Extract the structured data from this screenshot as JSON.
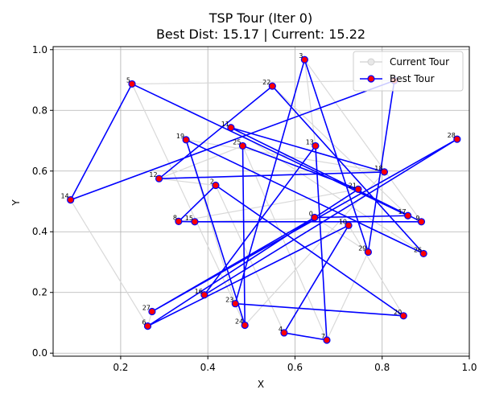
{
  "chart_data": {
    "type": "line",
    "title": "TSP Tour (Iter 0)",
    "subtitle": "Best Dist: 15.17 | Current: 15.22",
    "xlabel": "X",
    "ylabel": "Y",
    "xlim": [
      0.045,
      1.0
    ],
    "ylim": [
      -0.01,
      1.01
    ],
    "xticks": [
      0.2,
      0.4,
      0.6,
      0.8,
      1.0
    ],
    "xtick_labels": [
      "0.2",
      "0.4",
      "0.6",
      "0.8",
      "1.0"
    ],
    "yticks": [
      0.0,
      0.2,
      0.4,
      0.6,
      0.8,
      1.0
    ],
    "ytick_labels": [
      "0.0",
      "0.2",
      "0.4",
      "0.6",
      "0.8",
      "1.0"
    ],
    "grid": true,
    "legend": {
      "placement": "top-right",
      "entries": [
        {
          "label": "Current Tour",
          "color": "#d9d9d9"
        },
        {
          "label": "Best Tour",
          "color": "#0000ff"
        }
      ]
    },
    "points": [
      {
        "id": 0,
        "x": 0.645,
        "y": 0.447
      },
      {
        "id": 1,
        "x": 0.828,
        "y": 0.898
      },
      {
        "id": 2,
        "x": 0.418,
        "y": 0.553
      },
      {
        "id": 3,
        "x": 0.622,
        "y": 0.967
      },
      {
        "id": 4,
        "x": 0.575,
        "y": 0.067
      },
      {
        "id": 5,
        "x": 0.226,
        "y": 0.887
      },
      {
        "id": 6,
        "x": 0.262,
        "y": 0.089
      },
      {
        "id": 7,
        "x": 0.673,
        "y": 0.043
      },
      {
        "id": 8,
        "x": 0.333,
        "y": 0.434
      },
      {
        "id": 9,
        "x": 0.89,
        "y": 0.433
      },
      {
        "id": 10,
        "x": 0.723,
        "y": 0.421
      },
      {
        "id": 11,
        "x": 0.453,
        "y": 0.743
      },
      {
        "id": 12,
        "x": 0.288,
        "y": 0.575
      },
      {
        "id": 13,
        "x": 0.647,
        "y": 0.683
      },
      {
        "id": 14,
        "x": 0.085,
        "y": 0.505
      },
      {
        "id": 15,
        "x": 0.37,
        "y": 0.433
      },
      {
        "id": 16,
        "x": 0.392,
        "y": 0.192
      },
      {
        "id": 17,
        "x": 0.859,
        "y": 0.453
      },
      {
        "id": 18,
        "x": 0.805,
        "y": 0.597
      },
      {
        "id": 19,
        "x": 0.35,
        "y": 0.703
      },
      {
        "id": 20,
        "x": 0.849,
        "y": 0.123
      },
      {
        "id": 21,
        "x": 0.745,
        "y": 0.54
      },
      {
        "id": 22,
        "x": 0.548,
        "y": 0.88
      },
      {
        "id": 23,
        "x": 0.463,
        "y": 0.163
      },
      {
        "id": 24,
        "x": 0.485,
        "y": 0.092
      },
      {
        "id": 25,
        "x": 0.48,
        "y": 0.683
      },
      {
        "id": 26,
        "x": 0.895,
        "y": 0.328
      },
      {
        "id": 27,
        "x": 0.272,
        "y": 0.137
      },
      {
        "id": 28,
        "x": 0.972,
        "y": 0.705
      },
      {
        "id": 29,
        "x": 0.768,
        "y": 0.333
      }
    ],
    "series": [
      {
        "name": "Current Tour",
        "color": "#d9d9d9",
        "tour": [
          1,
          14,
          6,
          27,
          28,
          16,
          13,
          3,
          9,
          11,
          26,
          22,
          17,
          15,
          8,
          21,
          0,
          29,
          7,
          25,
          12,
          2,
          4,
          10,
          20,
          23,
          19,
          18,
          24,
          5,
          1
        ]
      },
      {
        "name": "Best Tour",
        "color": "#0000ff",
        "marker_face": "#ff0000",
        "marker_edge": "#0000ff",
        "tour": [
          1,
          14,
          5,
          17,
          0,
          27,
          28,
          16,
          13,
          7,
          4,
          10,
          6,
          21,
          25,
          24,
          19,
          26,
          22,
          12,
          18,
          11,
          9,
          15,
          8,
          2,
          20,
          23,
          3,
          29,
          1
        ]
      }
    ]
  }
}
